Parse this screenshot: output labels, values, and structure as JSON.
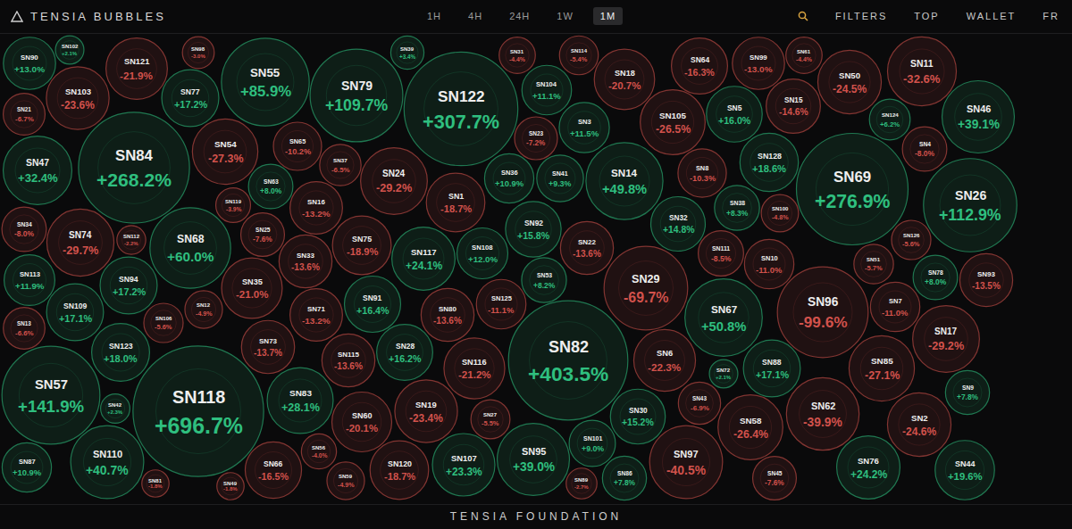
{
  "page": {
    "brand": "TENSIA BUBBLES",
    "periods": [
      "1H",
      "4H",
      "24H",
      "1W",
      "1M"
    ],
    "active_period": "1M",
    "menu": [
      "FILTERS",
      "TOP",
      "WALLET",
      "FR"
    ],
    "footer": "TENSIA FOUNDATION"
  },
  "chart_data": {
    "type": "bubble",
    "tick_labels": false,
    "data_labels": true,
    "categories": [
      "SN90",
      "SN21",
      "SN47",
      "SN34",
      "SN113",
      "SN13",
      "SN57",
      "SN103",
      "SN74",
      "SN109",
      "SN110",
      "SN84",
      "SN123",
      "SN94",
      "SN118",
      "SN121",
      "SN68",
      "SN77",
      "SN87",
      "SN54",
      "SN42",
      "SN106",
      "SN12",
      "SN98",
      "SN55",
      "SN35",
      "SN119",
      "SN73",
      "SN66",
      "SN25",
      "SN63",
      "SN83",
      "SN65",
      "SN33",
      "SN16",
      "SN71",
      "SN56",
      "SN79",
      "SN115",
      "SN37",
      "SN75",
      "SN60",
      "SN91",
      "SN24",
      "SN120",
      "SN59",
      "SN28",
      "SN117",
      "SN122",
      "SN19",
      "SN80",
      "SN1",
      "SN107",
      "SN116",
      "SN108",
      "SN27",
      "SN125",
      "SN36",
      "SN95",
      "SN82",
      "SN31",
      "SN92",
      "SN102",
      "SN23",
      "SN104",
      "SN53",
      "SN41",
      "SN3",
      "SN22",
      "SN112",
      "SN114",
      "SN101",
      "SN14",
      "SN18",
      "SN29",
      "SN30",
      "SN6",
      "SN39",
      "SN86",
      "SN105",
      "SN97",
      "SN32",
      "SN81",
      "SN64",
      "SN8",
      "SN67",
      "SN43",
      "SN111",
      "SN5",
      "SN58",
      "SN38",
      "SN99",
      "SN128",
      "SN49",
      "SN88",
      "SN89",
      "SN10",
      "SN15",
      "SN45",
      "SN96",
      "SN100",
      "SN62",
      "SN61",
      "SN69",
      "SN50",
      "SN76",
      "SN85",
      "SN51",
      "SN124",
      "SN72",
      "SN7",
      "SN11",
      "SN2",
      "SN126",
      "SN4",
      "SN17",
      "SN26",
      "SN44",
      "SN46",
      "SN78",
      "SN9",
      "SN93"
    ],
    "values": [
      13.0,
      -6.7,
      32.4,
      -8.0,
      11.9,
      -6.6,
      141.9,
      -23.6,
      -29.7,
      17.1,
      40.7,
      268.2,
      18.0,
      17.2,
      696.7,
      -21.9,
      60.0,
      17.2,
      10.9,
      -27.3,
      2.3,
      -5.6,
      -4.9,
      -3.0,
      85.9,
      -21.0,
      -3.9,
      -13.7,
      -16.5,
      -7.6,
      8.0,
      28.1,
      -10.2,
      -13.6,
      -13.2,
      -13.2,
      -4.0,
      109.7,
      -13.6,
      -6.5,
      -18.9,
      -20.1,
      16.4,
      -29.2,
      -18.7,
      -4.9,
      16.2,
      24.1,
      307.7,
      -23.4,
      -13.6,
      -18.7,
      23.3,
      -21.2,
      12.0,
      -5.5,
      -11.1,
      10.9,
      39.0,
      403.5,
      -4.4,
      15.8,
      2.1,
      -7.2,
      11.1,
      8.2,
      9.3,
      11.5,
      -13.6,
      -2.2,
      -5.4,
      9.0,
      49.8,
      -20.7,
      -69.7,
      15.2,
      -22.3,
      3.4,
      7.8,
      -26.5,
      -40.5,
      14.8,
      -1.8,
      -16.3,
      -10.3,
      50.8,
      -6.9,
      -8.5,
      16.0,
      -26.4,
      8.3,
      -13.0,
      18.6,
      -1.8,
      17.1,
      -2.7,
      -11.0,
      -14.6,
      -7.6,
      -99.6,
      -4.8,
      -39.9,
      -4.4,
      276.9,
      -24.5,
      24.2,
      -27.1,
      -5.7,
      6.2,
      2.1,
      -11.0,
      -32.6,
      -24.6,
      -5.6,
      -8.0,
      -29.2,
      112.9,
      19.6,
      39.1,
      8.0,
      7.8,
      -13.5
    ],
    "value_labels": [
      "+13.0%",
      "-6.7%",
      "+32.4%",
      "-8.0%",
      "+11.9%",
      "-6.6%",
      "+141.9%",
      "-23.6%",
      "-29.7%",
      "+17.1%",
      "+40.7%",
      "+268.2%",
      "+18.0%",
      "+17.2%",
      "+696.7%",
      "-21.9%",
      "+60.0%",
      "+17.2%",
      "+10.9%",
      "-27.3%",
      "+2.3%",
      "-5.6%",
      "-4.9%",
      "-3.0%",
      "+85.9%",
      "-21.0%",
      "-3.9%",
      "-13.7%",
      "-16.5%",
      "-7.6%",
      "+8.0%",
      "+28.1%",
      "-10.2%",
      "-13.6%",
      "-13.2%",
      "-13.2%",
      "-4.0%",
      "+109.7%",
      "-13.6%",
      "-6.5%",
      "-18.9%",
      "-20.1%",
      "+16.4%",
      "-29.2%",
      "-18.7%",
      "-4.9%",
      "+16.2%",
      "+24.1%",
      "+307.7%",
      "-23.4%",
      "-13.6%",
      "-18.7%",
      "+23.3%",
      "-21.2%",
      "+12.0%",
      "-5.5%",
      "-11.1%",
      "+10.9%",
      "+39.0%",
      "+403.5%",
      "-4.4%",
      "+15.8%",
      "+2.1%",
      "-7.2%",
      "+11.1%",
      "+8.2%",
      "+9.3%",
      "+11.5%",
      "-13.6%",
      "-2.2%",
      "-5.4%",
      "+9.0%",
      "+49.8%",
      "-20.7%",
      "-69.7%",
      "+15.2%",
      "-22.3%",
      "+3.4%",
      "+7.8%",
      "-26.5%",
      "-40.5%",
      "+14.8%",
      "-1.8%",
      "-16.3%",
      "-10.3%",
      "+50.8%",
      "-6.9%",
      "-8.5%",
      "+16.0%",
      "-26.4%",
      "+8.3%",
      "-13.0%",
      "+18.6%",
      "-1.8%",
      "+17.1%",
      "-2.7%",
      "-11.0%",
      "-14.6%",
      "-7.6%",
      "-99.6%",
      "-4.8%",
      "-39.9%",
      "-4.4%",
      "+276.9%",
      "-24.5%",
      "+24.2%",
      "-27.1%",
      "-5.7%",
      "+6.2%",
      "+2.1%",
      "-11.0%",
      "-32.6%",
      "-24.6%",
      "-5.6%",
      "-8.0%",
      "-29.2%",
      "+112.9%",
      "+19.6%",
      "+39.1%",
      "+8.0%",
      "+7.8%",
      "-13.5%"
    ],
    "colors": [
      "#2fbf7f",
      "#d2524c",
      "#2fbf7f",
      "#d2524c",
      "#2fbf7f",
      "#d2524c",
      "#2fbf7f",
      "#d2524c",
      "#d2524c",
      "#2fbf7f",
      "#2fbf7f",
      "#2fbf7f",
      "#2fbf7f",
      "#2fbf7f",
      "#2fbf7f",
      "#d2524c",
      "#2fbf7f",
      "#2fbf7f",
      "#2fbf7f",
      "#d2524c",
      "#2fbf7f",
      "#d2524c",
      "#d2524c",
      "#d2524c",
      "#2fbf7f",
      "#d2524c",
      "#d2524c",
      "#d2524c",
      "#d2524c",
      "#d2524c",
      "#2fbf7f",
      "#2fbf7f",
      "#d2524c",
      "#d2524c",
      "#d2524c",
      "#d2524c",
      "#d2524c",
      "#2fbf7f",
      "#d2524c",
      "#d2524c",
      "#d2524c",
      "#d2524c",
      "#2fbf7f",
      "#d2524c",
      "#d2524c",
      "#d2524c",
      "#2fbf7f",
      "#2fbf7f",
      "#2fbf7f",
      "#d2524c",
      "#d2524c",
      "#d2524c",
      "#2fbf7f",
      "#d2524c",
      "#2fbf7f",
      "#d2524c",
      "#d2524c",
      "#2fbf7f",
      "#2fbf7f",
      "#2fbf7f",
      "#d2524c",
      "#2fbf7f",
      "#2fbf7f",
      "#d2524c",
      "#2fbf7f",
      "#2fbf7f",
      "#2fbf7f",
      "#2fbf7f",
      "#d2524c",
      "#d2524c",
      "#d2524c",
      "#2fbf7f",
      "#2fbf7f",
      "#d2524c",
      "#d2524c",
      "#2fbf7f",
      "#d2524c",
      "#2fbf7f",
      "#2fbf7f",
      "#d2524c",
      "#d2524c",
      "#2fbf7f",
      "#d2524c",
      "#d2524c",
      "#d2524c",
      "#2fbf7f",
      "#d2524c",
      "#d2524c",
      "#2fbf7f",
      "#d2524c",
      "#2fbf7f",
      "#d2524c",
      "#2fbf7f",
      "#d2524c",
      "#2fbf7f",
      "#d2524c",
      "#d2524c",
      "#d2524c",
      "#d2524c",
      "#d2524c",
      "#d2524c",
      "#d2524c",
      "#d2524c",
      "#2fbf7f",
      "#d2524c",
      "#2fbf7f",
      "#d2524c",
      "#d2524c",
      "#2fbf7f",
      "#2fbf7f",
      "#d2524c",
      "#d2524c",
      "#d2524c",
      "#d2524c",
      "#d2524c",
      "#d2524c",
      "#2fbf7f",
      "#2fbf7f",
      "#2fbf7f",
      "#2fbf7f",
      "#2fbf7f",
      "#d2524c"
    ]
  }
}
